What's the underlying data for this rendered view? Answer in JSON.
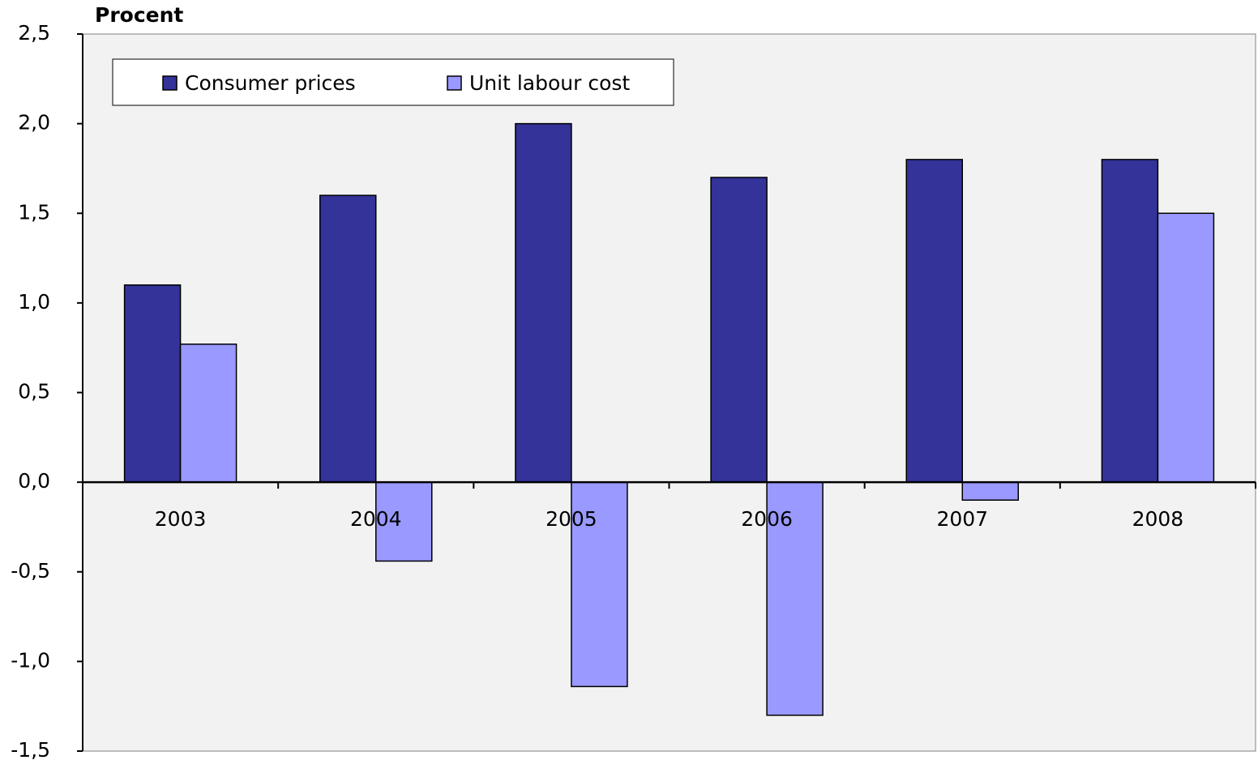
{
  "chart_data": {
    "type": "bar",
    "y_label": "Procent",
    "categories": [
      "2003",
      "2004",
      "2005",
      "2006",
      "2007",
      "2008"
    ],
    "series": [
      {
        "name": "Consumer prices",
        "color": "#333399",
        "values": [
          1.1,
          1.6,
          2.0,
          1.7,
          1.8,
          1.8
        ]
      },
      {
        "name": "Unit labour cost",
        "color": "#9999ff",
        "values": [
          0.77,
          -0.44,
          -1.14,
          -1.3,
          -0.1,
          1.5
        ]
      }
    ],
    "ylim": [
      -1.5,
      2.5
    ],
    "yticks": [
      {
        "value": -1.5,
        "label": "-1,5"
      },
      {
        "value": -1.0,
        "label": "-1,0"
      },
      {
        "value": -0.5,
        "label": "-0,5"
      },
      {
        "value": 0,
        "label": "0,0"
      },
      {
        "value": 0.5,
        "label": "0,5"
      },
      {
        "value": 1.0,
        "label": "1,0"
      },
      {
        "value": 1.5,
        "label": "1,5"
      },
      {
        "value": 2.0,
        "label": "2,0"
      },
      {
        "value": 2.5,
        "label": "2,5"
      }
    ]
  }
}
